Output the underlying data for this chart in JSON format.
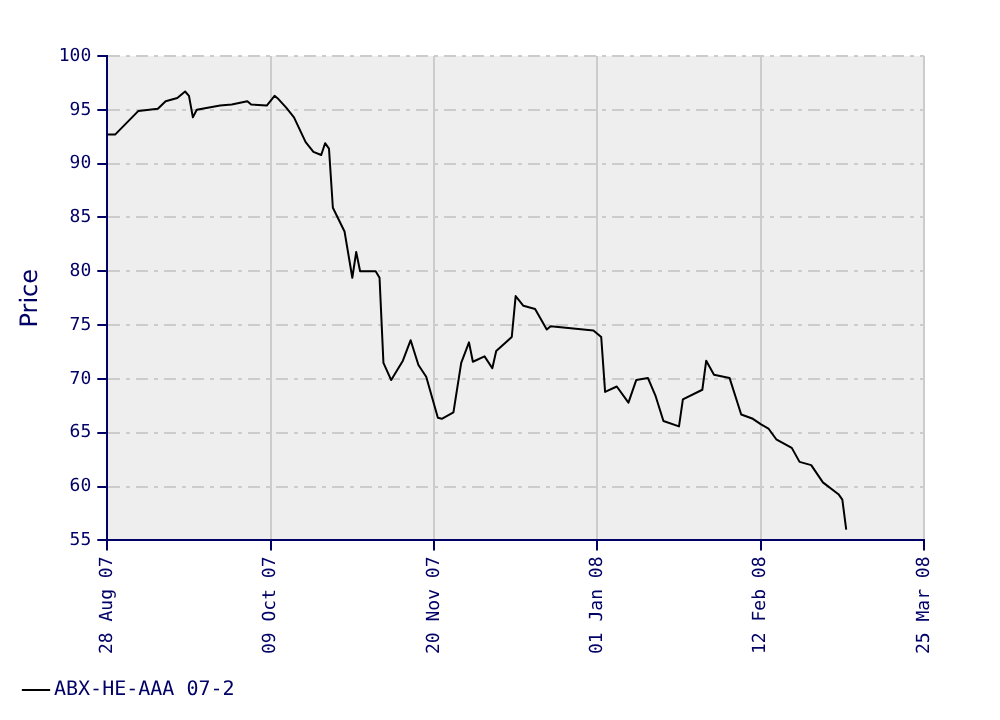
{
  "chart_data": {
    "type": "line",
    "ylabel": "Price",
    "x": [
      "2007-08-28",
      "2007-08-30",
      "2007-09-05",
      "2007-09-10",
      "2007-09-12",
      "2007-09-15",
      "2007-09-17",
      "2007-09-18",
      "2007-09-19",
      "2007-09-20",
      "2007-09-26",
      "2007-09-29",
      "2007-10-03",
      "2007-10-04",
      "2007-10-08",
      "2007-10-10",
      "2007-10-11",
      "2007-10-13",
      "2007-10-15",
      "2007-10-18",
      "2007-10-20",
      "2007-10-22",
      "2007-10-23",
      "2007-10-24",
      "2007-10-25",
      "2007-10-28",
      "2007-10-30",
      "2007-10-31",
      "2007-11-01",
      "2007-11-05",
      "2007-11-06",
      "2007-11-07",
      "2007-11-09",
      "2007-11-12",
      "2007-11-14",
      "2007-11-16",
      "2007-11-18",
      "2007-11-21",
      "2007-11-22",
      "2007-11-25",
      "2007-11-27",
      "2007-11-29",
      "2007-11-30",
      "2007-12-03",
      "2007-12-05",
      "2007-12-06",
      "2007-12-10",
      "2007-12-11",
      "2007-12-13",
      "2007-12-16",
      "2007-12-19",
      "2007-12-20",
      "2007-12-31",
      "2008-01-02",
      "2008-01-03",
      "2008-01-06",
      "2008-01-09",
      "2008-01-11",
      "2008-01-14",
      "2008-01-16",
      "2008-01-18",
      "2008-01-22",
      "2008-01-23",
      "2008-01-28",
      "2008-01-29",
      "2008-01-31",
      "2008-02-04",
      "2008-02-07",
      "2008-02-10",
      "2008-02-12",
      "2008-02-14",
      "2008-02-16",
      "2008-02-20",
      "2008-02-22",
      "2008-02-25",
      "2008-02-28",
      "2008-03-03",
      "2008-03-04",
      "2008-03-05"
    ],
    "series": [
      {
        "name": "ABX-HE-AAA 07-2",
        "color": "#000000",
        "values": [
          92.7,
          92.7,
          94.9,
          95.1,
          95.8,
          96.1,
          96.7,
          96.3,
          94.3,
          95.0,
          95.4,
          95.5,
          95.8,
          95.5,
          95.4,
          96.3,
          96.0,
          95.2,
          94.3,
          92.0,
          91.1,
          90.8,
          91.9,
          91.4,
          85.9,
          83.7,
          79.4,
          81.8,
          80.0,
          80.0,
          79.4,
          71.5,
          69.9,
          71.7,
          73.6,
          71.3,
          70.2,
          66.4,
          66.3,
          66.9,
          71.5,
          73.4,
          71.6,
          72.1,
          71.0,
          72.6,
          73.9,
          77.7,
          76.8,
          76.5,
          74.6,
          74.9,
          74.5,
          73.9,
          68.8,
          69.3,
          67.8,
          69.9,
          70.1,
          68.4,
          66.1,
          65.6,
          68.1,
          69.0,
          71.7,
          70.4,
          70.1,
          66.7,
          66.3,
          65.8,
          65.4,
          64.4,
          63.6,
          62.3,
          62.0,
          60.4,
          59.3,
          58.8,
          56.0
        ]
      }
    ],
    "xlim": [
      "2007-08-28",
      "2008-03-25"
    ],
    "xticks": [
      {
        "value": "2007-08-28",
        "label": "28 Aug 07"
      },
      {
        "value": "2007-10-09",
        "label": "09 Oct 07"
      },
      {
        "value": "2007-11-20",
        "label": "20 Nov 07"
      },
      {
        "value": "2008-01-01",
        "label": "01 Jan 08"
      },
      {
        "value": "2008-02-12",
        "label": "12 Feb 08"
      },
      {
        "value": "2008-03-25",
        "label": "25 Mar 08"
      }
    ],
    "ylim": [
      55,
      100
    ],
    "yticks": [
      55,
      60,
      65,
      70,
      75,
      80,
      85,
      90,
      95,
      100
    ],
    "grid": true,
    "legend": "bottom left",
    "marker": "none",
    "line_style": "solid"
  }
}
